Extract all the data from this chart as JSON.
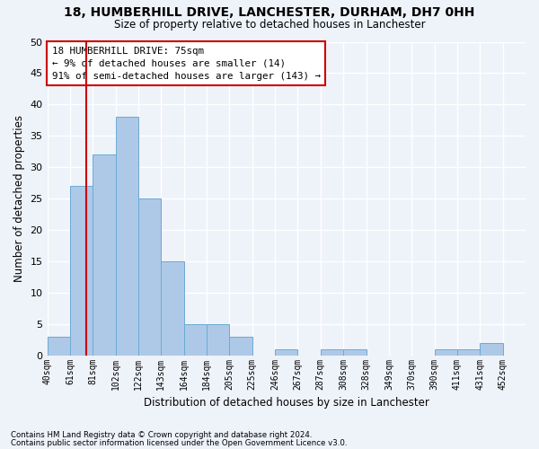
{
  "title": "18, HUMBERHILL DRIVE, LANCHESTER, DURHAM, DH7 0HH",
  "subtitle": "Size of property relative to detached houses in Lanchester",
  "xlabel": "Distribution of detached houses by size in Lanchester",
  "ylabel": "Number of detached properties",
  "bin_labels": [
    "40sqm",
    "61sqm",
    "81sqm",
    "102sqm",
    "122sqm",
    "143sqm",
    "164sqm",
    "184sqm",
    "205sqm",
    "225sqm",
    "246sqm",
    "267sqm",
    "287sqm",
    "308sqm",
    "328sqm",
    "349sqm",
    "370sqm",
    "390sqm",
    "411sqm",
    "431sqm",
    "452sqm"
  ],
  "bar_heights": [
    3,
    27,
    32,
    38,
    25,
    15,
    5,
    5,
    3,
    0,
    1,
    0,
    1,
    1,
    0,
    0,
    0,
    1,
    1,
    2,
    0
  ],
  "bar_color": "#aec9e8",
  "bar_edge_color": "#6aaad4",
  "vline_color": "#cc0000",
  "annotation_title": "18 HUMBERHILL DRIVE: 75sqm",
  "annotation_line1": "← 9% of detached houses are smaller (14)",
  "annotation_line2": "91% of semi-detached houses are larger (143) →",
  "annotation_box_color": "#ffffff",
  "annotation_box_edge": "#cc0000",
  "ylim": [
    0,
    50
  ],
  "yticks": [
    0,
    5,
    10,
    15,
    20,
    25,
    30,
    35,
    40,
    45,
    50
  ],
  "footer1": "Contains HM Land Registry data © Crown copyright and database right 2024.",
  "footer2": "Contains public sector information licensed under the Open Government Licence v3.0.",
  "bg_color": "#eef2f9",
  "grid_color": "#ffffff"
}
